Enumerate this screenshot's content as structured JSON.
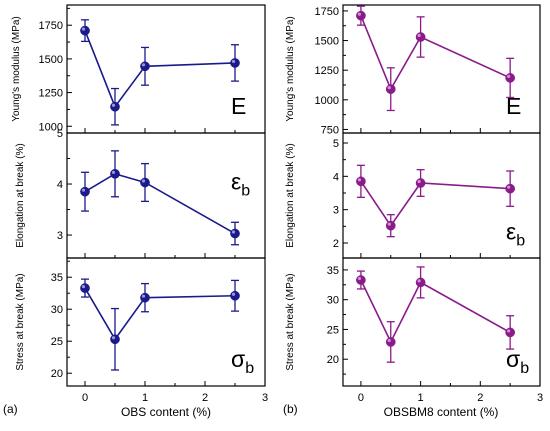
{
  "panels": [
    {
      "label": "(a)",
      "xlabel": "OBS content (%)",
      "color": "#1a1a8c",
      "xlim": [
        -0.3,
        3
      ],
      "xticks": [
        0,
        1,
        2,
        3
      ],
      "subplots": [
        {
          "ylabel": "Young's modulus (MPa)",
          "symbol": "E",
          "sub": "",
          "symbol_pos": "bottom-right",
          "ylim": [
            950,
            1900
          ],
          "yticks": [
            1000,
            1250,
            1500,
            1750
          ]
        },
        {
          "ylabel": "Elongation at break (%)",
          "symbol": "ε",
          "sub": "b",
          "symbol_pos": "right",
          "ylim": [
            2.55,
            5.0
          ],
          "yticks": [
            3,
            4,
            5
          ]
        },
        {
          "ylabel": "Stress at break (MPa)",
          "symbol": "σ",
          "sub": "b",
          "symbol_pos": "bottom-right",
          "ylim": [
            18,
            38
          ],
          "yticks": [
            20,
            25,
            30,
            35
          ]
        }
      ]
    },
    {
      "label": "(b)",
      "xlabel": "OBSBM8 content (%)",
      "color": "#8b1a8b",
      "xlim": [
        -0.3,
        3
      ],
      "xticks": [
        0,
        1,
        2,
        3
      ],
      "subplots": [
        {
          "ylabel": "Young's modulus (MPa)",
          "symbol": "E",
          "sub": "",
          "symbol_pos": "bottom-right",
          "ylim": [
            720,
            1800
          ],
          "yticks": [
            750,
            1000,
            1250,
            1500,
            1750
          ]
        },
        {
          "ylabel": "Elongation at break (%)",
          "symbol": "ε",
          "sub": "b",
          "symbol_pos": "bottom-right",
          "ylim": [
            1.55,
            5.3
          ],
          "yticks": [
            2,
            3,
            4,
            5
          ]
        },
        {
          "ylabel": "Stress at break (MPa)",
          "symbol": "σ",
          "sub": "b",
          "symbol_pos": "bottom-right",
          "ylim": [
            15.5,
            37
          ],
          "yticks": [
            20,
            25,
            30,
            35
          ]
        }
      ]
    }
  ],
  "chart_data": [
    {
      "type": "line",
      "panel": "(a)",
      "ylabel": "Young's modulus (MPa)",
      "x": [
        0,
        0.5,
        1,
        2.5
      ],
      "y": [
        1710,
        1145,
        1445,
        1470
      ],
      "err": [
        80,
        135,
        140,
        135
      ]
    },
    {
      "type": "line",
      "panel": "(a)",
      "ylabel": "Elongation at break (%)",
      "x": [
        0,
        0.5,
        1,
        2.5
      ],
      "y": [
        3.85,
        4.2,
        4.03,
        3.03
      ],
      "err": [
        0.38,
        0.45,
        0.37,
        0.22
      ]
    },
    {
      "type": "line",
      "panel": "(a)",
      "ylabel": "Stress at break (MPa)",
      "x": [
        0,
        0.5,
        1,
        2.5
      ],
      "y": [
        33.3,
        25.3,
        31.8,
        32.1
      ],
      "err": [
        1.4,
        4.8,
        2.2,
        2.4
      ]
    },
    {
      "type": "line",
      "panel": "(b)",
      "ylabel": "Young's modulus (MPa)",
      "x": [
        0,
        0.5,
        1,
        2.5
      ],
      "y": [
        1710,
        1090,
        1530,
        1185
      ],
      "err": [
        80,
        180,
        170,
        165
      ]
    },
    {
      "type": "line",
      "panel": "(b)",
      "ylabel": "Elongation at break (%)",
      "x": [
        0,
        0.5,
        1,
        2.5
      ],
      "y": [
        3.85,
        2.52,
        3.8,
        3.63
      ],
      "err": [
        0.48,
        0.33,
        0.4,
        0.53
      ]
    },
    {
      "type": "line",
      "panel": "(b)",
      "ylabel": "Stress at break (MPa)",
      "x": [
        0,
        0.5,
        1,
        2.5
      ],
      "y": [
        33.3,
        22.9,
        32.9,
        24.5
      ],
      "err": [
        1.5,
        3.4,
        2.6,
        2.8
      ]
    }
  ]
}
